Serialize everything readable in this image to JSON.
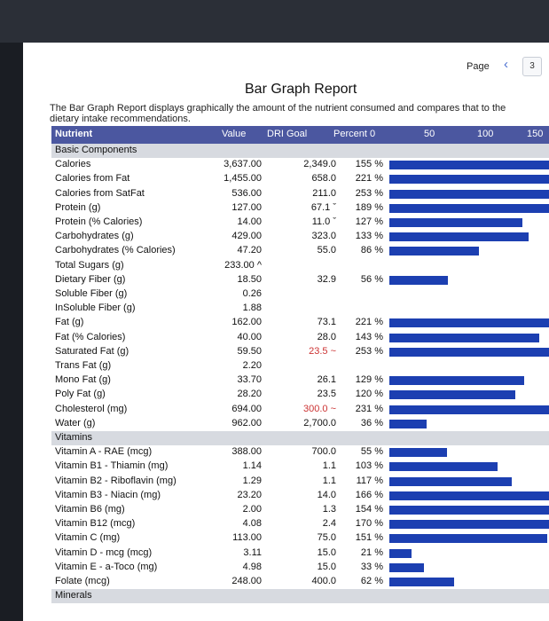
{
  "pager": {
    "label": "Page",
    "prev_icon": "‹",
    "current": "3"
  },
  "title": "Bar Graph Report",
  "description": "The Bar Graph Report displays graphically the amount of the nutrient consumed and compares that to the dietary intake recommendations.",
  "columns": {
    "nutrient": "Nutrient",
    "value": "Value",
    "dri": "DRI Goal",
    "percent": "Percent 0",
    "t50": "50",
    "t100": "100",
    "t150": "150"
  },
  "rows": [
    {
      "name": "Basic Components",
      "value": "",
      "dri": "",
      "pct": "",
      "section": true
    },
    {
      "name": "Calories",
      "value": "3,637.00",
      "dri": "2,349.0",
      "pct": "155 %",
      "bar": 155
    },
    {
      "name": "Calories from Fat",
      "value": "1,455.00",
      "dri": "658.0",
      "pct": "221 %",
      "bar": 221
    },
    {
      "name": "Calories from SatFat",
      "value": "536.00",
      "dri": "211.0",
      "pct": "253 %",
      "bar": 253
    },
    {
      "name": "Protein (g)",
      "value": "127.00",
      "dri": "67.1 ˇ",
      "pct": "189 %",
      "bar": 189
    },
    {
      "name": "Protein (% Calories)",
      "value": "14.00",
      "dri": "11.0 ˇ",
      "pct": "127 %",
      "bar": 127
    },
    {
      "name": "Carbohydrates (g)",
      "value": "429.00",
      "dri": "323.0",
      "pct": "133 %",
      "bar": 133
    },
    {
      "name": "Carbohydrates (% Calories)",
      "value": "47.20",
      "dri": "55.0",
      "pct": "86 %",
      "bar": 86
    },
    {
      "name": "Total Sugars (g)",
      "value": "233.00 ^",
      "dri": "",
      "pct": ""
    },
    {
      "name": "Dietary Fiber (g)",
      "value": "18.50",
      "dri": "32.9",
      "pct": "56 %",
      "bar": 56
    },
    {
      "name": "Soluble Fiber (g)",
      "value": "0.26",
      "dri": "",
      "pct": ""
    },
    {
      "name": "InSoluble Fiber (g)",
      "value": "1.88",
      "dri": "",
      "pct": ""
    },
    {
      "name": "Fat (g)",
      "value": "162.00",
      "dri": "73.1",
      "pct": "221 %",
      "bar": 221
    },
    {
      "name": "Fat (% Calories)",
      "value": "40.00",
      "dri": "28.0",
      "pct": "143 %",
      "bar": 143
    },
    {
      "name": "Saturated Fat (g)",
      "value": "59.50",
      "dri": "23.5 ~",
      "pct": "253 %",
      "bar": 253,
      "red": true
    },
    {
      "name": "Trans Fat (g)",
      "value": "2.20",
      "dri": "",
      "pct": ""
    },
    {
      "name": "Mono Fat (g)",
      "value": "33.70",
      "dri": "26.1",
      "pct": "129 %",
      "bar": 129
    },
    {
      "name": "Poly Fat (g)",
      "value": "28.20",
      "dri": "23.5",
      "pct": "120 %",
      "bar": 120
    },
    {
      "name": "Cholesterol (mg)",
      "value": "694.00",
      "dri": "300.0 ~",
      "pct": "231 %",
      "bar": 231,
      "red": true
    },
    {
      "name": "Water (g)",
      "value": "962.00",
      "dri": "2,700.0",
      "pct": "36 %",
      "bar": 36
    },
    {
      "name": "Vitamins",
      "value": "",
      "dri": "",
      "pct": "",
      "section": true
    },
    {
      "name": "Vitamin A - RAE (mcg)",
      "value": "388.00",
      "dri": "700.0",
      "pct": "55 %",
      "bar": 55
    },
    {
      "name": "Vitamin B1 - Thiamin (mg)",
      "value": "1.14",
      "dri": "1.1",
      "pct": "103 %",
      "bar": 103
    },
    {
      "name": "Vitamin B2 - Riboflavin (mg)",
      "value": "1.29",
      "dri": "1.1",
      "pct": "117 %",
      "bar": 117
    },
    {
      "name": "Vitamin B3 - Niacin (mg)",
      "value": "23.20",
      "dri": "14.0",
      "pct": "166 %",
      "bar": 166
    },
    {
      "name": "Vitamin B6 (mg)",
      "value": "2.00",
      "dri": "1.3",
      "pct": "154 %",
      "bar": 154
    },
    {
      "name": "Vitamin B12 (mcg)",
      "value": "4.08",
      "dri": "2.4",
      "pct": "170 %",
      "bar": 170
    },
    {
      "name": "Vitamin C (mg)",
      "value": "113.00",
      "dri": "75.0",
      "pct": "151 %",
      "bar": 151
    },
    {
      "name": "Vitamin D - mcg (mcg)",
      "value": "3.11",
      "dri": "15.0",
      "pct": "21 %",
      "bar": 21
    },
    {
      "name": "Vitamin E - a-Toco (mg)",
      "value": "4.98",
      "dri": "15.0",
      "pct": "33 %",
      "bar": 33
    },
    {
      "name": "Folate (mcg)",
      "value": "248.00",
      "dri": "400.0",
      "pct": "62 %",
      "bar": 62
    },
    {
      "name": "Minerals",
      "value": "",
      "dri": "",
      "pct": "",
      "section": true
    }
  ]
}
